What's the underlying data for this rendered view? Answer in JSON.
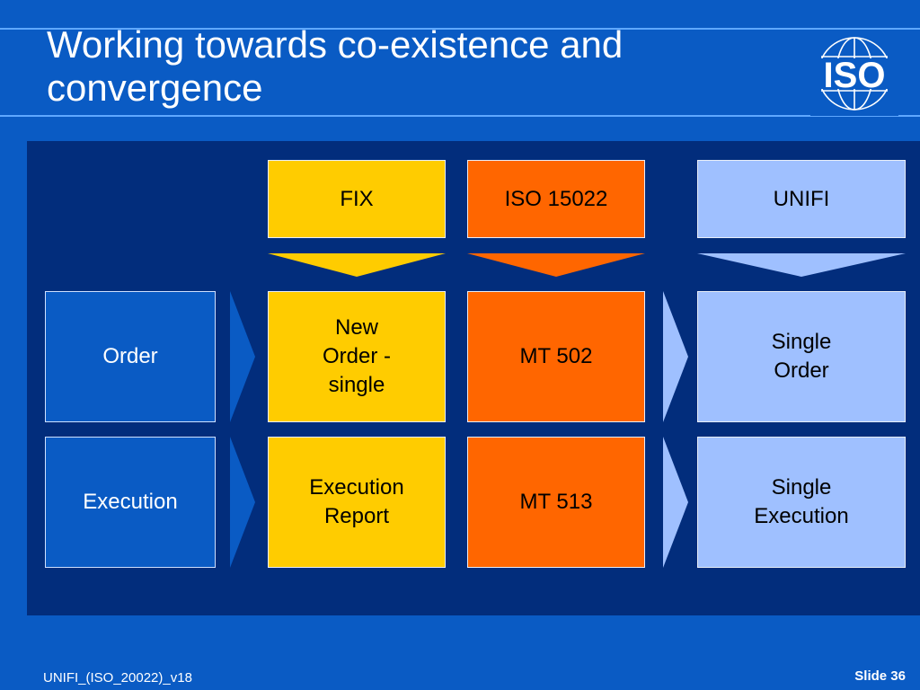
{
  "slide": {
    "title_line1": "Working towards co-existence and",
    "title_line2": "convergence",
    "logo_text": "ISO",
    "footer_left": "UNIFI_(ISO_20022)_v18",
    "footer_right": "Slide 36"
  },
  "columns": {
    "fix": "FIX",
    "iso15022": "ISO 15022",
    "unifi": "UNIFI"
  },
  "rows": {
    "order": {
      "label": "Order",
      "fix_line1": "New",
      "fix_line2": "Order -",
      "fix_line3": "single",
      "iso15022": "MT 502",
      "unifi_line1": "Single",
      "unifi_line2": "Order"
    },
    "execution": {
      "label": "Execution",
      "fix_line1": "Execution",
      "fix_line2": "Report",
      "iso15022": "MT 513",
      "unifi_line1": "Single",
      "unifi_line2": "Execution"
    }
  },
  "colors": {
    "background": "#0a5bc4",
    "panel": "#022d7c",
    "fix": "#ffcc00",
    "iso15022": "#ff6600",
    "unifi": "#9fc0ff"
  },
  "icons": {
    "logo": "iso-globe-logo-icon",
    "arrow_down": "triangle-down-icon",
    "arrow_right": "chevron-right-icon"
  }
}
